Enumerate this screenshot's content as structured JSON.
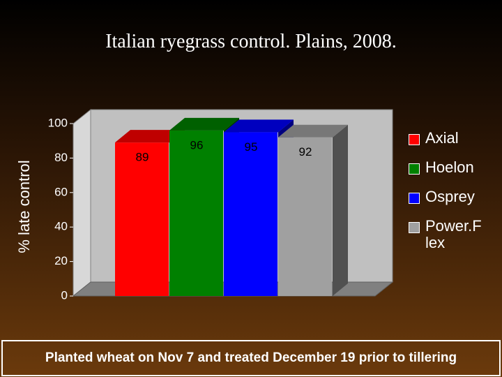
{
  "chart_data": {
    "type": "bar",
    "title": "Italian ryegrass control.  Plains, 2008.",
    "y_label": "% late control",
    "series": [
      {
        "name": "Axial",
        "color": "#ff0000",
        "values": [
          89
        ]
      },
      {
        "name": "Hoelon",
        "color": "#008000",
        "values": [
          96
        ]
      },
      {
        "name": "Osprey",
        "color": "#0000ff",
        "values": [
          95
        ]
      },
      {
        "name": "Power.Flex",
        "color": "#a0a0a0",
        "values": [
          92
        ]
      }
    ],
    "ylim": [
      0,
      100
    ],
    "yticks": [
      0,
      20,
      40,
      60,
      80,
      100
    ],
    "grid": false,
    "legend": "right",
    "caption": "Planted  wheat on Nov 7 and treated December 19 prior to tillering"
  }
}
